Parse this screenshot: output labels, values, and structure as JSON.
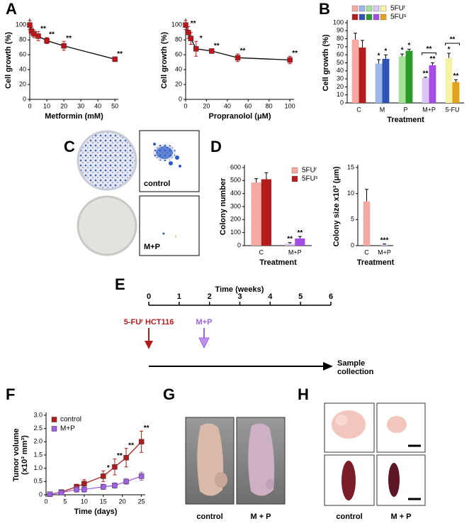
{
  "panel_letters": [
    "A",
    "B",
    "C",
    "D",
    "E",
    "F",
    "G",
    "H"
  ],
  "chart_data": [
    {
      "type": "line",
      "x_label": "Metformin (mM)",
      "y_label": "Cell growth (%)",
      "x": [
        0,
        1,
        2.5,
        5,
        10,
        20,
        50
      ],
      "series": [
        {
          "color": "#c0141b",
          "line_color": "#000000",
          "values": [
            100,
            92,
            88,
            85,
            79,
            72,
            54
          ],
          "errors": [
            6,
            5,
            5,
            6,
            4,
            6,
            3
          ],
          "annotations": [
            null,
            null,
            null,
            "**",
            "**",
            "**",
            "**"
          ]
        }
      ],
      "xlim": [
        0,
        52
      ],
      "ylim": [
        0,
        105
      ],
      "xticks": [
        0,
        10,
        20,
        30,
        40,
        50
      ],
      "yticks": [
        0,
        20,
        40,
        60,
        80,
        100
      ]
    },
    {
      "type": "line",
      "x_label": "Propranolol (μM)",
      "y_label": "Cell growth (%)",
      "x": [
        0,
        2.5,
        5,
        10,
        25,
        50,
        100
      ],
      "series": [
        {
          "color": "#c0141b",
          "line_color": "#000000",
          "values": [
            100,
            90,
            82,
            68,
            65,
            56,
            53
          ],
          "errors": [
            6,
            8,
            8,
            10,
            3,
            5,
            5
          ],
          "annotations": [
            null,
            "**",
            null,
            "*",
            "**",
            "**",
            "**"
          ]
        }
      ],
      "xlim": [
        0,
        104
      ],
      "ylim": [
        0,
        105
      ],
      "xticks": [
        0,
        20,
        40,
        60,
        80,
        100
      ],
      "yticks": [
        0,
        20,
        40,
        60,
        80,
        100
      ]
    },
    {
      "type": "bar",
      "x_label": "Treatment",
      "y_label": "Cell growth (%)",
      "categories": [
        "C",
        "M",
        "P",
        "M+P",
        "5-FU"
      ],
      "series": [
        {
          "name": "5FUʳ",
          "colors": [
            "#f6a9a3",
            "#9cb8ea",
            "#a6e39a",
            "#dcc6f4",
            "#f7f3a6"
          ],
          "values": [
            79,
            49,
            58,
            31,
            56
          ],
          "errors": [
            8,
            5,
            3,
            1,
            6
          ],
          "annotations": [
            null,
            "*",
            "*",
            "**",
            "*"
          ]
        },
        {
          "name": "5FUˢ",
          "colors": [
            "#b41d1d",
            "#2d53b3",
            "#2b9a2b",
            "#a74be6",
            "#e0a21f"
          ],
          "values": [
            69,
            55,
            65,
            47,
            26
          ],
          "errors": [
            9,
            5,
            2,
            3,
            3
          ],
          "annotations": [
            null,
            "*",
            "*",
            "**",
            "**"
          ]
        }
      ],
      "brackets": [
        {
          "at": 3,
          "label": "**"
        },
        {
          "at": 4,
          "label": "**"
        }
      ],
      "legend_style": "all-colors",
      "ylim": [
        0,
        100
      ],
      "yticks": [
        0,
        10,
        20,
        30,
        40,
        50,
        60,
        70,
        80,
        90,
        100
      ]
    },
    {
      "type": "bar",
      "x_label": "Treatment",
      "y_label": "Colony number",
      "categories": [
        "C",
        "M+P"
      ],
      "series": [
        {
          "name": "5FUʳ",
          "colors": [
            "#f6a9a3",
            "#dcc6f4"
          ],
          "values": [
            485,
            15
          ],
          "errors": [
            30,
            8
          ],
          "annotations": [
            null,
            "**"
          ]
        },
        {
          "name": "5FUˢ",
          "colors": [
            "#b41d1d",
            "#a74be6"
          ],
          "values": [
            510,
            55
          ],
          "errors": [
            50,
            15
          ],
          "annotations": [
            null,
            "**"
          ]
        }
      ],
      "legend_style": "first-color",
      "ylim": [
        0,
        600
      ],
      "yticks": [
        0,
        100,
        200,
        300,
        400,
        500,
        600
      ]
    },
    {
      "type": "bar",
      "x_label": "Treatment",
      "y_label": "Colony size x10³ (μm)",
      "categories": [
        "C",
        "M+P"
      ],
      "series": [
        {
          "colors": [
            "#f6a9a3",
            "#dcc6f4"
          ],
          "values": [
            8.5,
            0.2
          ],
          "errors": [
            2.3,
            0.1
          ],
          "annotations": [
            null,
            "***"
          ]
        }
      ],
      "ylim": [
        0,
        15
      ],
      "yticks": [
        0,
        5,
        10,
        15
      ]
    },
    {
      "type": "line",
      "x_label": "Time (days)",
      "y_label": [
        "Tumor volume",
        "(x10³ mm³)"
      ],
      "x": [
        1,
        4,
        8,
        10,
        15,
        18,
        21,
        25
      ],
      "series": [
        {
          "name": "control",
          "color": "#b01c1c",
          "line_color": "#b01c1c",
          "values": [
            0.02,
            0.1,
            0.3,
            0.42,
            0.7,
            1.05,
            1.4,
            2.0
          ],
          "errors": [
            0.02,
            0.05,
            0.1,
            0.15,
            0.2,
            0.3,
            0.35,
            0.4
          ],
          "annotations": [
            null,
            null,
            null,
            null,
            "*",
            "**",
            "**",
            "**"
          ]
        },
        {
          "name": "M+P",
          "color": "#a060e0",
          "line_color": "#a060e0",
          "values": [
            0.02,
            0.08,
            0.2,
            0.2,
            0.3,
            0.35,
            0.5,
            0.7
          ],
          "errors": [
            0.02,
            0.05,
            0.1,
            0.1,
            0.1,
            0.1,
            0.1,
            0.15
          ],
          "annotations": [
            null,
            null,
            null,
            null,
            null,
            null,
            null,
            null
          ]
        }
      ],
      "legend": "top-left",
      "xlim": [
        0,
        26
      ],
      "ylim": [
        0,
        3
      ],
      "xticks": [
        0,
        5,
        10,
        15,
        20,
        25
      ],
      "yticks": [
        0,
        0.5,
        {
          "value": 1,
          "label": "1.0"
        },
        1.5,
        {
          "value": 2,
          "label": "2.0"
        },
        2.5,
        {
          "value": 3,
          "label": "3.0"
        }
      ]
    }
  ],
  "colony_photos": {
    "labels": [
      "control",
      "M+P"
    ]
  },
  "timeline": {
    "title": "Time (weeks)",
    "ticks": [
      0,
      1,
      2,
      3,
      4,
      5,
      6
    ],
    "start_label": "5-FUʳ HCT116",
    "treatment_label": "M+P",
    "end_label": [
      "Sample",
      "collection"
    ]
  },
  "mouse_photos": {
    "labels": [
      "control",
      "M + P"
    ]
  },
  "tissue_photos": {
    "labels": [
      "control",
      "M + P"
    ]
  }
}
